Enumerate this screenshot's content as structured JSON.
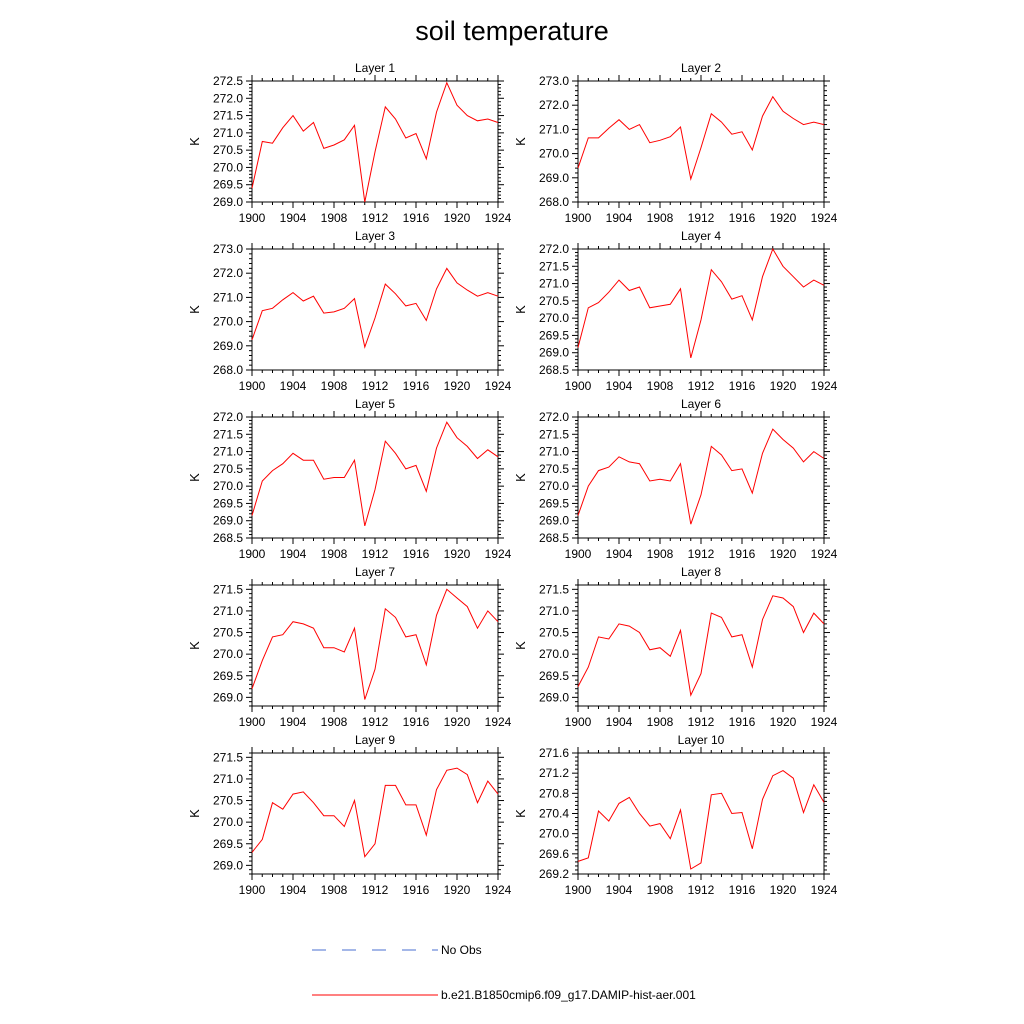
{
  "chart_data": {
    "type": "line",
    "title": "soil temperature",
    "x": [
      1900,
      1901,
      1902,
      1903,
      1904,
      1905,
      1906,
      1907,
      1908,
      1909,
      1910,
      1911,
      1912,
      1913,
      1914,
      1915,
      1916,
      1917,
      1918,
      1919,
      1920,
      1921,
      1922,
      1923,
      1924
    ],
    "xticks": [
      1900,
      1904,
      1908,
      1912,
      1916,
      1920,
      1924
    ],
    "xlim": [
      1900,
      1924
    ],
    "legend": [
      {
        "label": "No Obs",
        "color": "#4a6fd0",
        "style": "dashed"
      },
      {
        "label": "b.e21.B1850cmip6.f09_g17.DAMIP-hist-aer.001",
        "color": "#ff0000",
        "style": "solid"
      }
    ],
    "panels": [
      {
        "title": "Layer 1",
        "ylabel": "K",
        "ylim": [
          269.0,
          272.5
        ],
        "yticks": [
          "272.5",
          "272.0",
          "271.5",
          "271.0",
          "270.5",
          "270.0",
          "269.5",
          "269.0"
        ],
        "series": [
          {
            "name": "b.e21.B1850cmip6.f09_g17.DAMIP-hist-aer.001",
            "color": "#ff0000",
            "values": [
              269.4,
              270.75,
              270.7,
              271.15,
              271.5,
              271.05,
              271.3,
              270.55,
              270.65,
              270.8,
              271.22,
              269.0,
              270.45,
              271.75,
              271.4,
              270.85,
              270.98,
              270.25,
              271.6,
              272.45,
              271.8,
              271.5,
              271.35,
              271.4,
              271.3
            ]
          }
        ]
      },
      {
        "title": "Layer 2",
        "ylabel": "K",
        "ylim": [
          268.0,
          273.0
        ],
        "yticks": [
          "273.0",
          "272.0",
          "271.0",
          "270.0",
          "269.0",
          "268.0"
        ],
        "series": [
          {
            "name": "b.e21.B1850cmip6.f09_g17.DAMIP-hist-aer.001",
            "color": "#ff0000",
            "values": [
              269.4,
              270.65,
              270.65,
              271.05,
              271.4,
              271.0,
              271.2,
              270.45,
              270.55,
              270.7,
              271.1,
              268.95,
              270.25,
              271.65,
              271.3,
              270.8,
              270.9,
              270.15,
              271.55,
              272.35,
              271.75,
              271.45,
              271.2,
              271.3,
              271.2
            ]
          }
        ]
      },
      {
        "title": "Layer 3",
        "ylabel": "K",
        "ylim": [
          268.0,
          273.0
        ],
        "yticks": [
          "273.0",
          "272.0",
          "271.0",
          "270.0",
          "269.0",
          "268.0"
        ],
        "series": [
          {
            "name": "b.e21.B1850cmip6.f09_g17.DAMIP-hist-aer.001",
            "color": "#ff0000",
            "values": [
              269.25,
              270.45,
              270.55,
              270.9,
              271.2,
              270.85,
              271.05,
              270.35,
              270.4,
              270.55,
              270.95,
              268.95,
              270.15,
              271.55,
              271.15,
              270.65,
              270.75,
              270.05,
              271.35,
              272.2,
              271.6,
              271.3,
              271.05,
              271.2,
              271.05
            ]
          }
        ]
      },
      {
        "title": "Layer 4",
        "ylabel": "K",
        "ylim": [
          268.5,
          272.0
        ],
        "yticks": [
          "272.0",
          "271.5",
          "271.0",
          "270.5",
          "270.0",
          "269.5",
          "269.0",
          "268.5"
        ],
        "series": [
          {
            "name": "b.e21.B1850cmip6.f09_g17.DAMIP-hist-aer.001",
            "color": "#ff0000",
            "values": [
              269.15,
              270.3,
              270.45,
              270.75,
              271.1,
              270.8,
              270.9,
              270.3,
              270.35,
              270.4,
              270.85,
              268.85,
              269.95,
              271.4,
              271.05,
              270.55,
              270.65,
              269.95,
              271.2,
              272.0,
              271.5,
              271.2,
              270.9,
              271.1,
              270.95
            ]
          }
        ]
      },
      {
        "title": "Layer 5",
        "ylabel": "K",
        "ylim": [
          268.5,
          272.0
        ],
        "yticks": [
          "272.0",
          "271.5",
          "271.0",
          "270.5",
          "270.0",
          "269.5",
          "269.0",
          "268.5"
        ],
        "series": [
          {
            "name": "b.e21.B1850cmip6.f09_g17.DAMIP-hist-aer.001",
            "color": "#ff0000",
            "values": [
              269.15,
              270.15,
              270.45,
              270.65,
              270.95,
              270.75,
              270.75,
              270.2,
              270.25,
              270.25,
              270.75,
              268.85,
              269.9,
              271.3,
              270.95,
              270.5,
              270.6,
              269.85,
              271.1,
              271.85,
              271.4,
              271.15,
              270.8,
              271.05,
              270.85
            ]
          }
        ]
      },
      {
        "title": "Layer 6",
        "ylabel": "K",
        "ylim": [
          268.5,
          272.0
        ],
        "yticks": [
          "272.0",
          "271.5",
          "271.0",
          "270.5",
          "270.0",
          "269.5",
          "269.0",
          "268.5"
        ],
        "series": [
          {
            "name": "b.e21.B1850cmip6.f09_g17.DAMIP-hist-aer.001",
            "color": "#ff0000",
            "values": [
              269.15,
              270.0,
              270.45,
              270.55,
              270.85,
              270.7,
              270.65,
              270.15,
              270.2,
              270.15,
              270.65,
              268.9,
              269.75,
              271.15,
              270.9,
              270.45,
              270.5,
              269.8,
              270.95,
              271.65,
              271.35,
              271.1,
              270.7,
              271.0,
              270.8
            ]
          }
        ]
      },
      {
        "title": "Layer 7",
        "ylabel": "K",
        "ylim": [
          268.8,
          271.6
        ],
        "yticks": [
          "271.5",
          "271.0",
          "270.5",
          "270.0",
          "269.5",
          "269.0"
        ],
        "series": [
          {
            "name": "b.e21.B1850cmip6.f09_g17.DAMIP-hist-aer.001",
            "color": "#ff0000",
            "values": [
              269.2,
              269.85,
              270.4,
              270.45,
              270.75,
              270.7,
              270.6,
              270.15,
              270.15,
              270.05,
              270.6,
              268.95,
              269.65,
              271.05,
              270.85,
              270.4,
              270.45,
              269.75,
              270.9,
              271.5,
              271.3,
              271.1,
              270.6,
              271.0,
              270.75
            ]
          }
        ]
      },
      {
        "title": "Layer 8",
        "ylabel": "K",
        "ylim": [
          268.8,
          271.6
        ],
        "yticks": [
          "271.5",
          "271.0",
          "270.5",
          "270.0",
          "269.5",
          "269.0"
        ],
        "series": [
          {
            "name": "b.e21.B1850cmip6.f09_g17.DAMIP-hist-aer.001",
            "color": "#ff0000",
            "values": [
              269.25,
              269.7,
              270.4,
              270.35,
              270.7,
              270.65,
              270.5,
              270.1,
              270.15,
              269.95,
              270.55,
              269.05,
              269.55,
              270.95,
              270.85,
              270.4,
              270.45,
              269.7,
              270.8,
              271.35,
              271.3,
              271.1,
              270.5,
              270.95,
              270.7
            ]
          }
        ]
      },
      {
        "title": "Layer 9",
        "ylabel": "K",
        "ylim": [
          268.8,
          271.6
        ],
        "yticks": [
          "271.5",
          "271.0",
          "270.5",
          "270.0",
          "269.5",
          "269.0"
        ],
        "series": [
          {
            "name": "b.e21.B1850cmip6.f09_g17.DAMIP-hist-aer.001",
            "color": "#ff0000",
            "values": [
              269.3,
              269.6,
              270.45,
              270.3,
              270.65,
              270.7,
              270.45,
              270.15,
              270.15,
              269.9,
              270.5,
              269.2,
              269.5,
              270.85,
              270.85,
              270.4,
              270.4,
              269.7,
              270.75,
              271.2,
              271.25,
              271.1,
              270.45,
              270.95,
              270.65
            ]
          }
        ]
      },
      {
        "title": "Layer 10",
        "ylabel": "K",
        "ylim": [
          269.2,
          271.6
        ],
        "yticks": [
          "271.6",
          "271.2",
          "270.8",
          "270.4",
          "270.0",
          "269.6",
          "269.2"
        ],
        "series": [
          {
            "name": "b.e21.B1850cmip6.f09_g17.DAMIP-hist-aer.001",
            "color": "#ff0000",
            "values": [
              269.45,
              269.52,
              270.45,
              270.25,
              270.6,
              270.72,
              270.4,
              270.15,
              270.2,
              269.9,
              270.47,
              269.3,
              269.42,
              270.77,
              270.8,
              270.4,
              270.42,
              269.7,
              270.68,
              271.15,
              271.25,
              271.1,
              270.42,
              270.97,
              270.62
            ]
          }
        ]
      }
    ]
  }
}
